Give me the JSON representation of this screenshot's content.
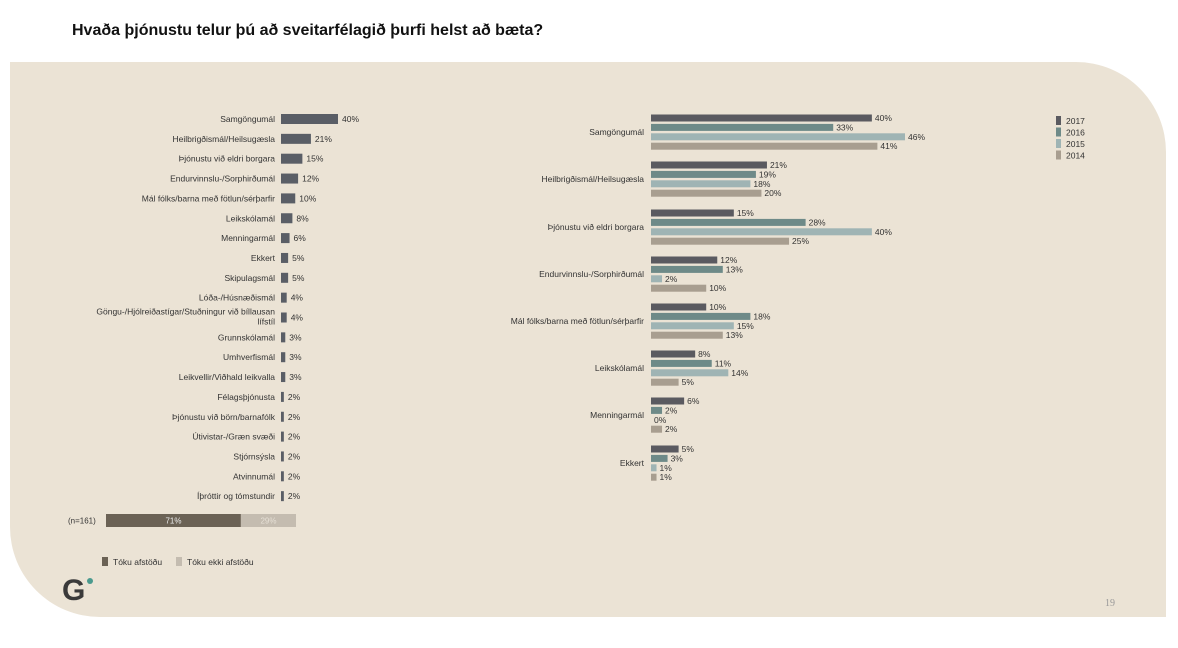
{
  "title": "Hvaða þjónustu telur þú að sveitarfélagið þurfi helst að bæta?",
  "page_number": "19",
  "logo_text": "G",
  "colors": {
    "year_2017": "#5a5a60",
    "year_2016": "#6e8a88",
    "year_2015": "#9fb4b4",
    "year_2014": "#a89e90",
    "left_bar": "#5a5e66",
    "answered": "#6b6255",
    "not_answered": "#c4bcb0"
  },
  "chart_data": [
    {
      "type": "bar",
      "orientation": "horizontal",
      "categories": [
        "Samgöngumál",
        "Heilbrigðismál/Heilsugæsla",
        "Þjónustu við eldri borgara",
        "Endurvinnslu-/Sorphirðumál",
        "Mál fólks/barna með fötlun/sérþarfir",
        "Leikskólamál",
        "Menningarmál",
        "Ekkert",
        "Skipulagsmál",
        "Lóða-/Húsnæðismál",
        "Göngu-/Hjólreiðastígar/Stuðningur við bíllausan lífstíl",
        "Grunnskólamál",
        "Umhverfismál",
        "Leikvellir/Viðhald leikvalla",
        "Félagsþjónusta",
        "Þjónustu við börn/barnafólk",
        "Útivistar-/Græn svæði",
        "Stjórnsýsla",
        "Atvinnumál",
        "Íþróttir og tómstundir"
      ],
      "values": [
        40,
        21,
        15,
        12,
        10,
        8,
        6,
        5,
        5,
        4,
        4,
        3,
        3,
        3,
        2,
        2,
        2,
        2,
        2,
        2
      ],
      "value_labels": [
        "40%",
        "21%",
        "15%",
        "12%",
        "10%",
        "8%",
        "6%",
        "5%",
        "5%",
        "4%",
        "4%",
        "3%",
        "3%",
        "3%",
        "2%",
        "2%",
        "2%",
        "2%",
        "2%",
        "2%"
      ],
      "xlim": [
        0,
        40
      ]
    },
    {
      "type": "bar",
      "orientation": "horizontal",
      "stacked": true,
      "label": "(n=161)",
      "series": [
        {
          "name": "Tóku afstöðu",
          "value": 71,
          "value_label": "71%"
        },
        {
          "name": "Tóku ekki afstöðu",
          "value": 29,
          "value_label": "29%"
        }
      ],
      "legend": "bottom-left"
    },
    {
      "type": "bar",
      "orientation": "horizontal",
      "categories": [
        "Samgöngumál",
        "Heilbrigðismál/Heilsugæsla",
        "Þjónustu við eldri borgara",
        "Endurvinnslu-/Sorphirðumál",
        "Mál fólks/barna með fötlun/sérþarfir",
        "Leikskólamál",
        "Menningarmál",
        "Ekkert"
      ],
      "series": [
        {
          "name": "2017",
          "values": [
            40,
            21,
            15,
            12,
            10,
            8,
            6,
            5
          ],
          "labels": [
            "40%",
            "21%",
            "15%",
            "12%",
            "10%",
            "8%",
            "6%",
            "5%"
          ]
        },
        {
          "name": "2016",
          "values": [
            33,
            19,
            28,
            13,
            18,
            11,
            2,
            3
          ],
          "labels": [
            "33%",
            "19%",
            "28%",
            "13%",
            "18%",
            "11%",
            "2%",
            "3%"
          ]
        },
        {
          "name": "2015",
          "values": [
            46,
            18,
            40,
            2,
            15,
            14,
            0,
            1
          ],
          "labels": [
            "46%",
            "18%",
            "40%",
            "2%",
            "15%",
            "14%",
            "0%",
            "1%"
          ]
        },
        {
          "name": "2014",
          "values": [
            41,
            20,
            25,
            10,
            13,
            5,
            2,
            1
          ],
          "labels": [
            "41%",
            "20%",
            "25%",
            "10%",
            "13%",
            "5%",
            "2%",
            "1%"
          ]
        }
      ],
      "xlim": [
        0,
        46
      ],
      "legend": "top-right"
    }
  ]
}
